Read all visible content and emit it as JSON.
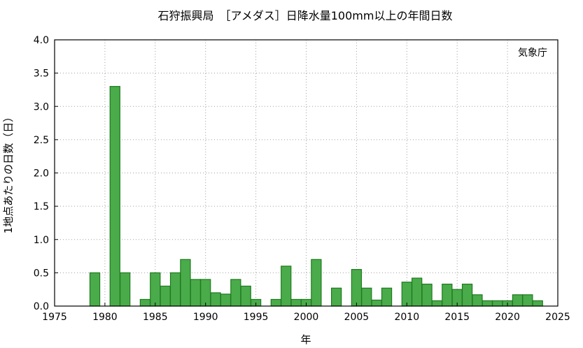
{
  "chart_data": {
    "type": "bar",
    "title": "石狩振興局　［アメダス］日降水量100mm以上の年間日数",
    "annotation": "気象庁",
    "xlabel": "年",
    "ylabel": "1地点あたりの日数（日）",
    "xlim": [
      1975,
      2025
    ],
    "ylim": [
      0,
      4.0
    ],
    "xticks": [
      1975,
      1980,
      1985,
      1990,
      1995,
      2000,
      2005,
      2010,
      2015,
      2020,
      2025
    ],
    "yticks": [
      "0.0",
      "0.5",
      "1.0",
      "1.5",
      "2.0",
      "2.5",
      "3.0",
      "3.5",
      "4.0"
    ],
    "grid": true,
    "x": [
      1979,
      1981,
      1982,
      1984,
      1985,
      1986,
      1987,
      1988,
      1989,
      1990,
      1991,
      1992,
      1993,
      1994,
      1995,
      1997,
      1998,
      1999,
      2000,
      2001,
      2003,
      2005,
      2006,
      2007,
      2008,
      2010,
      2011,
      2012,
      2013,
      2014,
      2015,
      2016,
      2017,
      2018,
      2019,
      2020,
      2021,
      2022,
      2023
    ],
    "values": [
      0.5,
      3.3,
      0.5,
      0.1,
      0.5,
      0.3,
      0.5,
      0.7,
      0.4,
      0.4,
      0.2,
      0.18,
      0.4,
      0.3,
      0.1,
      0.1,
      0.6,
      0.1,
      0.1,
      0.7,
      0.27,
      0.55,
      0.27,
      0.09,
      0.27,
      0.36,
      0.42,
      0.33,
      0.08,
      0.33,
      0.25,
      0.33,
      0.17,
      0.08,
      0.08,
      0.08,
      0.17,
      0.17,
      0.08
    ]
  },
  "colors": {
    "bar_fill": "#4aab4a",
    "bar_stroke": "#1f7a1f"
  }
}
